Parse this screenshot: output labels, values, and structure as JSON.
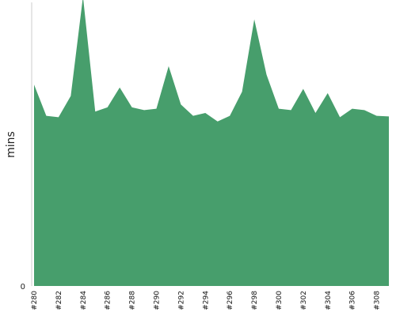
{
  "chart_data": {
    "type": "area",
    "title": "",
    "xlabel": "",
    "ylabel": "mins",
    "y_tick_labels": [
      "0"
    ],
    "x_tick_labels": [
      "#280",
      "#282",
      "#284",
      "#286",
      "#288",
      "#290",
      "#292",
      "#294",
      "#296",
      "#298",
      "#300",
      "#302",
      "#304",
      "#306",
      "#308"
    ],
    "x": [
      "#280",
      "#281",
      "#282",
      "#283",
      "#284",
      "#285",
      "#286",
      "#287",
      "#288",
      "#289",
      "#290",
      "#291",
      "#292",
      "#293",
      "#294",
      "#295",
      "#296",
      "#297",
      "#298",
      "#299",
      "#300",
      "#301",
      "#302",
      "#303",
      "#304",
      "#305",
      "#306",
      "#307",
      "#308",
      "#309"
    ],
    "series": [
      {
        "values": [
          7.1,
          6.0,
          5.95,
          6.7,
          10.2,
          6.15,
          6.3,
          7.0,
          6.3,
          6.2,
          6.25,
          7.75,
          6.4,
          6.0,
          6.1,
          5.8,
          6.0,
          6.85,
          9.4,
          7.45,
          6.25,
          6.2,
          6.95,
          6.1,
          6.8,
          5.95,
          6.25,
          6.2,
          6.0,
          5.98
        ]
      }
    ],
    "ylim": [
      0,
      10
    ],
    "grid": false,
    "legend": "none",
    "colors": {
      "fill": "#479e6c",
      "axis": "#cccccc"
    }
  }
}
